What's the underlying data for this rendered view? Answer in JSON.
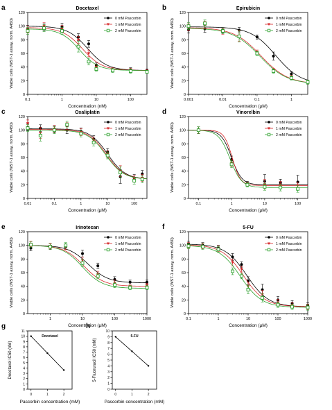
{
  "series_styles": [
    {
      "color": "#000000",
      "marker": "circle"
    },
    {
      "color": "#d62728",
      "marker": "triangle-down"
    },
    {
      "color": "#2ca02c",
      "marker": "square"
    }
  ],
  "chart_data": [
    {
      "panel": "a",
      "type": "line",
      "title": "Docetaxel",
      "xlabel": "Concentration (nM)",
      "ylabel": "Viable cells (WST-1 assay, norm. A450)",
      "xscale": "log",
      "xlim": [
        0.1,
        300
      ],
      "ylim": [
        0,
        120
      ],
      "xticks": [
        0.1,
        1,
        10,
        100
      ],
      "xtick_labels": [
        "0.1",
        "1",
        "10",
        "100"
      ],
      "yticks": [
        0,
        20,
        40,
        60,
        80,
        100,
        120
      ],
      "ytick_labels": [
        "0",
        "20",
        "40",
        "60",
        "80",
        "100",
        "120"
      ],
      "legend": "top-right",
      "series": [
        {
          "name": "0 mM Pascorbin",
          "x": [
            0.1,
            0.3,
            1,
            3,
            6,
            10,
            30,
            100,
            300
          ],
          "y": [
            96,
            98,
            99,
            84,
            74,
            43,
            36,
            36,
            35
          ],
          "err": [
            5,
            5,
            5,
            5,
            5,
            3,
            3,
            3,
            2
          ],
          "fit": {
            "top": 100,
            "bottom": 35,
            "ec50": 5.5,
            "hill": 1.5
          }
        },
        {
          "name": "1 mM Pascorbin",
          "x": [
            0.1,
            0.3,
            1,
            3,
            6,
            10,
            30,
            100,
            300
          ],
          "y": [
            95,
            100,
            96,
            80,
            60,
            40,
            36,
            35,
            34
          ],
          "err": [
            5,
            5,
            5,
            5,
            5,
            3,
            3,
            3,
            2
          ],
          "fit": {
            "top": 98,
            "bottom": 35,
            "ec50": 4.0,
            "hill": 1.5
          }
        },
        {
          "name": "2 mM Pascorbin",
          "x": [
            0.1,
            0.3,
            1,
            3,
            6,
            10,
            30,
            100,
            300
          ],
          "y": [
            93,
            97,
            93,
            70,
            48,
            37,
            35,
            34,
            33
          ],
          "err": [
            5,
            5,
            5,
            8,
            5,
            3,
            3,
            3,
            2
          ],
          "fit": {
            "top": 96,
            "bottom": 35,
            "ec50": 3.2,
            "hill": 1.6
          }
        }
      ]
    },
    {
      "panel": "b",
      "type": "line",
      "title": "Epirubicin",
      "xlabel": "Concentration (µM)",
      "ylabel": "Viable cells (WST-1 assay, norm. A450)",
      "xscale": "log",
      "xlim": [
        0.001,
        3
      ],
      "ylim": [
        0,
        120
      ],
      "xticks": [
        0.001,
        0.01,
        0.1,
        1
      ],
      "xtick_labels": [
        "0.001",
        "0.01",
        "0.1",
        "1"
      ],
      "yticks": [
        0,
        20,
        40,
        60,
        80,
        100,
        120
      ],
      "ytick_labels": [
        "0",
        "20",
        "40",
        "60",
        "80",
        "100",
        "120"
      ],
      "legend": "top-right",
      "series": [
        {
          "name": "0 mM Pascorbin",
          "x": [
            0.001,
            0.003,
            0.01,
            0.03,
            0.1,
            0.3,
            1,
            3
          ],
          "y": [
            95,
            96,
            94,
            94,
            84,
            56,
            30,
            18
          ],
          "err": [
            5,
            5,
            4,
            4,
            3,
            6,
            3,
            3
          ],
          "fit": {
            "top": 99,
            "bottom": 15,
            "ec50": 0.35,
            "hill": 1.2
          }
        },
        {
          "name": "1 mM Pascorbin",
          "x": [
            0.001,
            0.003,
            0.01,
            0.03,
            0.1,
            0.3,
            1,
            3
          ],
          "y": [
            98,
            102,
            92,
            86,
            62,
            35,
            25,
            18
          ],
          "err": [
            5,
            5,
            4,
            8,
            3,
            3,
            3,
            3
          ],
          "fit": {
            "top": 98,
            "bottom": 15,
            "ec50": 0.13,
            "hill": 1.1
          }
        },
        {
          "name": "2 mM Pascorbin",
          "x": [
            0.001,
            0.003,
            0.01,
            0.03,
            0.1,
            0.3,
            1,
            3
          ],
          "y": [
            100,
            104,
            93,
            85,
            60,
            34,
            24,
            18
          ],
          "err": [
            5,
            5,
            4,
            8,
            3,
            3,
            3,
            3
          ],
          "fit": {
            "top": 97,
            "bottom": 15,
            "ec50": 0.12,
            "hill": 1.1
          }
        }
      ]
    },
    {
      "panel": "c",
      "type": "line",
      "title": "Oxaliplatin",
      "xlabel": "Concentration (µM)",
      "ylabel": "Viable cells (WST-1 assay, norm. A450)",
      "xscale": "log",
      "xlim": [
        0.01,
        300
      ],
      "ylim": [
        0,
        120
      ],
      "xticks": [
        0.01,
        0.1,
        1,
        10,
        100
      ],
      "xtick_labels": [
        "0.01",
        "0.1",
        "1",
        "10",
        "100"
      ],
      "yticks": [
        0,
        20,
        40,
        60,
        80,
        100,
        120
      ],
      "ytick_labels": [
        "0",
        "20",
        "40",
        "60",
        "80",
        "100",
        "120"
      ],
      "legend": "top-right",
      "series": [
        {
          "name": "0 mM Pascorbin",
          "x": [
            0.01,
            0.03,
            0.1,
            0.3,
            1,
            3,
            10,
            30,
            100,
            200
          ],
          "y": [
            104,
            103,
            101,
            100,
            98,
            87,
            68,
            32,
            30,
            36
          ],
          "err": [
            5,
            5,
            5,
            5,
            5,
            5,
            5,
            10,
            5,
            5
          ],
          "fit": {
            "top": 102,
            "bottom": 28,
            "ec50": 10,
            "hill": 1.3
          }
        },
        {
          "name": "1 mM Pascorbin",
          "x": [
            0.01,
            0.03,
            0.1,
            0.3,
            1,
            3,
            10,
            30,
            100,
            200
          ],
          "y": [
            110,
            96,
            102,
            106,
            97,
            85,
            65,
            40,
            29,
            30
          ],
          "err": [
            5,
            8,
            5,
            5,
            5,
            5,
            5,
            8,
            5,
            5
          ],
          "fit": {
            "top": 101,
            "bottom": 28,
            "ec50": 9,
            "hill": 1.3
          }
        },
        {
          "name": "2 mM Pascorbin",
          "x": [
            0.01,
            0.03,
            0.1,
            0.3,
            1,
            3,
            10,
            30,
            100,
            200
          ],
          "y": [
            103,
            92,
            100,
            108,
            95,
            82,
            63,
            38,
            26,
            28
          ],
          "err": [
            5,
            8,
            5,
            5,
            5,
            5,
            5,
            8,
            5,
            5
          ],
          "fit": {
            "top": 100,
            "bottom": 28,
            "ec50": 8.5,
            "hill": 1.3
          }
        }
      ]
    },
    {
      "panel": "d",
      "type": "line",
      "title": "Vinorelbin",
      "xlabel": "Concentration (µM)",
      "ylabel": "Viable cells (WST-1 assay, norm. A450)",
      "xscale": "log",
      "xlim": [
        0.05,
        200
      ],
      "ylim": [
        0,
        120
      ],
      "xticks": [
        0.1,
        1,
        10,
        100
      ],
      "xtick_labels": [
        "0.1",
        "1",
        "10",
        "100"
      ],
      "yticks": [
        0,
        20,
        40,
        60,
        80,
        100,
        120
      ],
      "ytick_labels": [
        "0",
        "20",
        "40",
        "60",
        "80",
        "100",
        "120"
      ],
      "legend": "top-right",
      "series": [
        {
          "name": "0 mM Pascorbin",
          "x": [
            0.1,
            1,
            3,
            10,
            30,
            100
          ],
          "y": [
            100,
            57,
            22,
            25,
            23,
            24
          ],
          "err": [
            5,
            5,
            3,
            10,
            5,
            10
          ],
          "fit": {
            "top": 100,
            "bottom": 20,
            "ec50": 1.0,
            "hill": 2.8
          }
        },
        {
          "name": "1 mM Pascorbin",
          "x": [
            0.1,
            1,
            3,
            10,
            30,
            100
          ],
          "y": [
            100,
            52,
            21,
            20,
            20,
            19
          ],
          "err": [
            5,
            5,
            3,
            8,
            5,
            5
          ],
          "fit": {
            "top": 100,
            "bottom": 19,
            "ec50": 1.05,
            "hill": 3.5
          }
        },
        {
          "name": "2 mM Pascorbin",
          "x": [
            0.1,
            1,
            3,
            10,
            30,
            100
          ],
          "y": [
            100,
            50,
            20,
            17,
            16,
            14
          ],
          "err": [
            5,
            5,
            3,
            5,
            5,
            5
          ],
          "fit": {
            "top": 100,
            "bottom": 16,
            "ec50": 0.9,
            "hill": 2.5
          }
        }
      ]
    },
    {
      "panel": "e",
      "type": "line",
      "title": "Irinotecan",
      "xlabel": "Concentration (µM)",
      "ylabel": "Viable cells (WST-1 assay, norm. A450)",
      "xscale": "log",
      "xlim": [
        0.2,
        1000
      ],
      "ylim": [
        0,
        120
      ],
      "xticks": [
        1,
        10,
        100,
        1000
      ],
      "xtick_labels": [
        "1",
        "10",
        "100",
        "1000"
      ],
      "yticks": [
        0,
        20,
        40,
        60,
        80,
        100,
        120
      ],
      "ytick_labels": [
        "0",
        "20",
        "40",
        "60",
        "80",
        "100",
        "120"
      ],
      "legend": "top-right",
      "series": [
        {
          "name": "0 mM Pascorbin",
          "x": [
            0.25,
            1,
            3,
            10,
            30,
            100,
            300,
            1000
          ],
          "y": [
            96,
            98,
            98,
            88,
            70,
            50,
            46,
            46
          ],
          "err": [
            4,
            4,
            4,
            5,
            4,
            4,
            3,
            3
          ],
          "fit": {
            "top": 100,
            "bottom": 45,
            "ec50": 15,
            "hill": 1.4
          }
        },
        {
          "name": "1 mM Pascorbin",
          "x": [
            0.25,
            1,
            3,
            10,
            30,
            100,
            300,
            1000
          ],
          "y": [
            102,
            99,
            98,
            78,
            58,
            45,
            40,
            41
          ],
          "err": [
            4,
            4,
            4,
            5,
            4,
            4,
            3,
            3
          ],
          "fit": {
            "top": 100,
            "bottom": 40,
            "ec50": 11,
            "hill": 1.4
          }
        },
        {
          "name": "2 mM Pascorbin",
          "x": [
            0.25,
            1,
            3,
            10,
            30,
            100,
            300,
            1000
          ],
          "y": [
            101,
            98,
            100,
            74,
            55,
            42,
            38,
            38
          ],
          "err": [
            4,
            4,
            4,
            5,
            4,
            4,
            3,
            3
          ],
          "fit": {
            "top": 100,
            "bottom": 37,
            "ec50": 10,
            "hill": 1.4
          }
        }
      ]
    },
    {
      "panel": "f",
      "type": "line",
      "title": "5-FU",
      "xlabel": "Concentration (µM)",
      "ylabel": "Viable cells (WST-1 assay, norm. A450)",
      "xscale": "log",
      "xlim": [
        0.1,
        1000
      ],
      "ylim": [
        0,
        120
      ],
      "xticks": [
        0.1,
        1,
        10,
        100,
        1000
      ],
      "xtick_labels": [
        "0.1",
        "1",
        "10",
        "100",
        "1000"
      ],
      "yticks": [
        0,
        20,
        40,
        60,
        80,
        100,
        120
      ],
      "ytick_labels": [
        "0",
        "20",
        "40",
        "60",
        "80",
        "100",
        "120"
      ],
      "legend": "top-right",
      "series": [
        {
          "name": "0 mM Pascorbin",
          "x": [
            0.1,
            0.3,
            1,
            3,
            6,
            10,
            30,
            100,
            300,
            1000
          ],
          "y": [
            102,
            100,
            96,
            83,
            72,
            48,
            35,
            20,
            15,
            12
          ],
          "err": [
            4,
            4,
            4,
            5,
            4,
            6,
            8,
            5,
            4,
            4
          ],
          "fit": {
            "top": 102,
            "bottom": 10,
            "ec50": 9,
            "hill": 1.2
          }
        },
        {
          "name": "1 mM Pascorbin",
          "x": [
            0.1,
            0.3,
            1,
            3,
            6,
            10,
            30,
            100,
            300,
            1000
          ],
          "y": [
            100,
            99,
            95,
            75,
            65,
            40,
            28,
            16,
            12,
            10
          ],
          "err": [
            4,
            4,
            4,
            5,
            4,
            6,
            6,
            5,
            4,
            4
          ],
          "fit": {
            "top": 101,
            "bottom": 10,
            "ec50": 7,
            "hill": 1.2
          }
        },
        {
          "name": "2 mM Pascorbin",
          "x": [
            0.1,
            0.3,
            1,
            3,
            6,
            10,
            30,
            100,
            300,
            1000
          ],
          "y": [
            99,
            98,
            94,
            62,
            55,
            35,
            23,
            13,
            10,
            9
          ],
          "err": [
            4,
            4,
            4,
            5,
            4,
            6,
            6,
            4,
            4,
            4
          ],
          "fit": {
            "top": 100,
            "bottom": 9,
            "ec50": 5.5,
            "hill": 1.2
          }
        }
      ]
    },
    {
      "panel": "g",
      "type": "line",
      "title": "Docetaxel",
      "xlabel": "Pascorbin concentration (mM)",
      "ylabel": "Docetaxel IC50 (nM)",
      "xscale": "linear",
      "xlim": [
        -0.2,
        2.5
      ],
      "ylim": [
        0,
        11
      ],
      "xticks": [
        0,
        1,
        2
      ],
      "xtick_labels": [
        "0",
        "1",
        "2"
      ],
      "yticks": [
        0,
        1,
        2,
        3,
        4,
        5,
        6,
        7,
        8,
        9,
        10,
        11
      ],
      "ytick_labels": [
        "0",
        "1",
        "2",
        "3",
        "4",
        "5",
        "6",
        "7",
        "8",
        "9",
        "10",
        "11"
      ],
      "series": [
        {
          "x": [
            0,
            1,
            2
          ],
          "y": [
            10.0,
            6.8,
            3.6
          ]
        }
      ]
    },
    {
      "panel": "h",
      "type": "line",
      "title": "5-FU",
      "xlabel": "Pascorbin concentration (mM)",
      "ylabel": "5-Fluoruracil IC50 (mM)",
      "xscale": "linear",
      "xlim": [
        -0.2,
        2.5
      ],
      "ylim": [
        0,
        10
      ],
      "xticks": [
        0,
        1,
        2
      ],
      "xtick_labels": [
        "0",
        "1",
        "2"
      ],
      "yticks": [
        0,
        1,
        2,
        3,
        4,
        5,
        6,
        7,
        8,
        9,
        10
      ],
      "ytick_labels": [
        "0",
        "1",
        "2",
        "3",
        "4",
        "5",
        "6",
        "7",
        "8",
        "9",
        "10"
      ],
      "series": [
        {
          "x": [
            0,
            1,
            2
          ],
          "y": [
            9.0,
            6.5,
            4.0
          ]
        }
      ]
    }
  ]
}
